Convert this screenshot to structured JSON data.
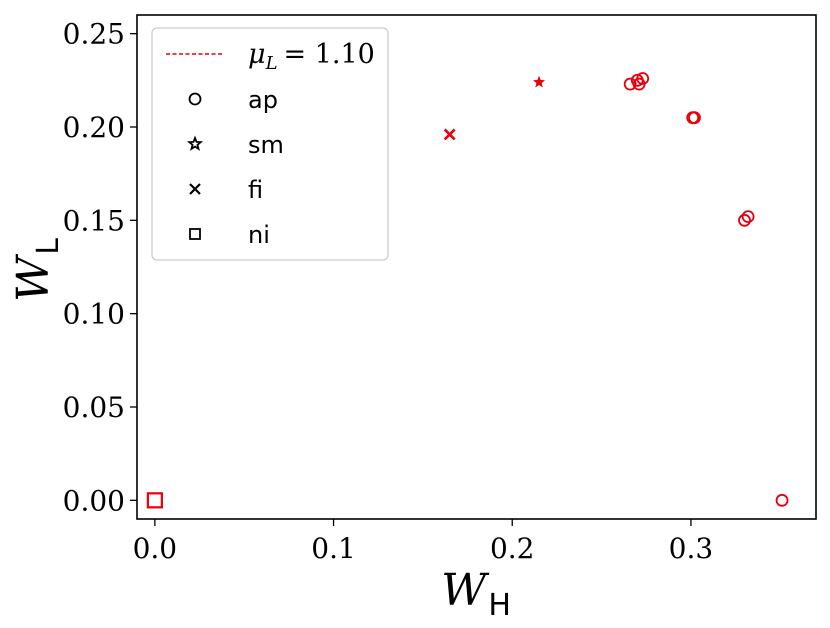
{
  "chart_data": {
    "type": "scatter",
    "title": "",
    "xlabel": {
      "main": "W",
      "sub": "H"
    },
    "ylabel": {
      "main": "W",
      "sub": "L"
    },
    "xlim": [
      -0.01,
      0.37
    ],
    "ylim": [
      -0.01,
      0.26
    ],
    "xticks": [
      0.0,
      0.1,
      0.2,
      0.3
    ],
    "xtick_labels": [
      "0.0",
      "0.1",
      "0.2",
      "0.3"
    ],
    "yticks": [
      0.0,
      0.05,
      0.1,
      0.15,
      0.2,
      0.25
    ],
    "ytick_labels": [
      "0.00",
      "0.05",
      "0.10",
      "0.15",
      "0.20",
      "0.25"
    ],
    "grid": false,
    "legend_position": "top-left",
    "color": "#e8000b",
    "legend": {
      "line_entry": {
        "symbol": "μ",
        "subscript": "L",
        "value": "= 1.10",
        "style": "dashed"
      },
      "marker_entries": [
        {
          "marker": "circle",
          "label": "ap"
        },
        {
          "marker": "star",
          "label": "sm"
        },
        {
          "marker": "x",
          "label": "fi"
        },
        {
          "marker": "square",
          "label": "ni"
        }
      ]
    },
    "series": [
      {
        "marker": "circle",
        "points": [
          {
            "x": 0.266,
            "y": 0.223
          },
          {
            "x": 0.27,
            "y": 0.225
          },
          {
            "x": 0.271,
            "y": 0.223
          },
          {
            "x": 0.273,
            "y": 0.226
          },
          {
            "x": 0.301,
            "y": 0.205
          },
          {
            "x": 0.302,
            "y": 0.205
          },
          {
            "x": 0.33,
            "y": 0.15
          },
          {
            "x": 0.332,
            "y": 0.152
          },
          {
            "x": 0.351,
            "y": 0.0
          }
        ]
      },
      {
        "marker": "star",
        "points": [
          {
            "x": 0.215,
            "y": 0.224
          }
        ]
      },
      {
        "marker": "x",
        "points": [
          {
            "x": 0.165,
            "y": 0.196
          }
        ]
      },
      {
        "marker": "square",
        "points": [
          {
            "x": 0.0,
            "y": 0.0
          }
        ]
      }
    ]
  }
}
